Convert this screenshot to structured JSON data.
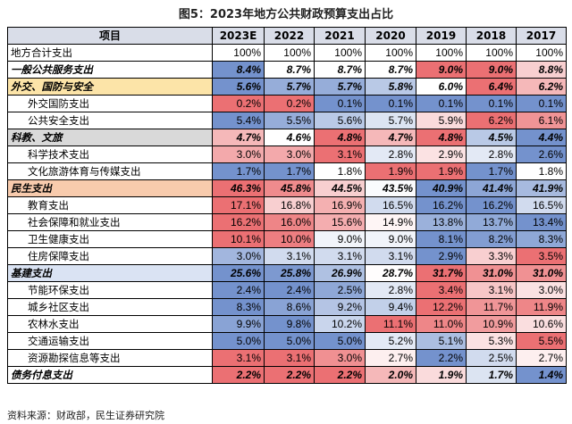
{
  "title": "图5：2023年地方公共财政预算支出占比",
  "source": "资料来源：财政部，民生证券研究院",
  "chart_data": {
    "type": "table",
    "title": "图5：2023年地方公共财政预算支出占比",
    "columns": [
      "项目",
      "2023E",
      "2022",
      "2021",
      "2020",
      "2019",
      "2018",
      "2017"
    ],
    "rows": [
      {
        "label": "地方合计支出",
        "level": 0,
        "bg": "#ffffff",
        "values": [
          "100%",
          "100%",
          "100%",
          "100%",
          "100%",
          "100%",
          "100%"
        ]
      },
      {
        "label": "一般公共服务支出",
        "level": 1,
        "bg": "#ffffff",
        "values": [
          "8.4%",
          "8.7%",
          "8.7%",
          "8.7%",
          "9.0%",
          "9.0%",
          "8.8%"
        ]
      },
      {
        "label": "外交、国防与安全",
        "level": 1,
        "bg": "#fce4a8",
        "values": [
          "5.6%",
          "5.7%",
          "5.7%",
          "5.8%",
          "6.0%",
          "6.4%",
          "6.2%"
        ]
      },
      {
        "label": "外交国防支出",
        "level": 2,
        "bg": "#ffffff",
        "values": [
          "0.2%",
          "0.2%",
          "0.1%",
          "0.1%",
          "0.1%",
          "0.1%",
          "0.1%"
        ]
      },
      {
        "label": "公共安全支出",
        "level": 2,
        "bg": "#ffffff",
        "values": [
          "5.4%",
          "5.5%",
          "5.6%",
          "5.7%",
          "5.9%",
          "6.2%",
          "6.1%"
        ]
      },
      {
        "label": "科教、文旅",
        "level": 1,
        "bg": "#d9d9d9",
        "values": [
          "4.7%",
          "4.6%",
          "4.8%",
          "4.7%",
          "4.8%",
          "4.5%",
          "4.4%"
        ]
      },
      {
        "label": "科学技术支出",
        "level": 2,
        "bg": "#ffffff",
        "values": [
          "3.0%",
          "3.0%",
          "3.1%",
          "2.8%",
          "2.9%",
          "2.8%",
          "2.6%"
        ]
      },
      {
        "label": "文化旅游体育与传媒支出",
        "level": 2,
        "bg": "#ffffff",
        "values": [
          "1.7%",
          "1.7%",
          "1.8%",
          "1.9%",
          "1.9%",
          "1.7%",
          "1.8%"
        ]
      },
      {
        "label": "民生支出",
        "level": 1,
        "bg": "#f8cbad",
        "values": [
          "46.3%",
          "45.8%",
          "44.5%",
          "43.5%",
          "40.9%",
          "41.4%",
          "41.9%"
        ]
      },
      {
        "label": "教育支出",
        "level": 2,
        "bg": "#ffffff",
        "values": [
          "17.1%",
          "16.8%",
          "16.9%",
          "16.5%",
          "16.2%",
          "16.2%",
          "16.5%"
        ]
      },
      {
        "label": "社会保障和就业支出",
        "level": 2,
        "bg": "#ffffff",
        "values": [
          "16.2%",
          "16.0%",
          "15.6%",
          "14.9%",
          "13.8%",
          "13.7%",
          "13.4%"
        ]
      },
      {
        "label": "卫生健康支出",
        "level": 2,
        "bg": "#ffffff",
        "values": [
          "10.1%",
          "10.0%",
          "9.0%",
          "9.0%",
          "8.1%",
          "8.2%",
          "8.3%"
        ]
      },
      {
        "label": "住房保障支出",
        "level": 2,
        "bg": "#ffffff",
        "values": [
          "3.0%",
          "3.1%",
          "3.1%",
          "3.1%",
          "2.9%",
          "3.3%",
          "3.5%"
        ]
      },
      {
        "label": "基建支出",
        "level": 1,
        "bg": "#dae3f3",
        "values": [
          "25.6%",
          "25.8%",
          "26.9%",
          "28.7%",
          "31.7%",
          "31.0%",
          "31.0%"
        ]
      },
      {
        "label": "节能环保支出",
        "level": 2,
        "bg": "#ffffff",
        "values": [
          "2.4%",
          "2.4%",
          "2.5%",
          "2.8%",
          "3.4%",
          "3.1%",
          "3.0%"
        ]
      },
      {
        "label": "城乡社区支出",
        "level": 2,
        "bg": "#ffffff",
        "values": [
          "8.3%",
          "8.6%",
          "9.2%",
          "9.4%",
          "12.2%",
          "11.7%",
          "11.9%"
        ]
      },
      {
        "label": "农林水支出",
        "level": 2,
        "bg": "#ffffff",
        "values": [
          "9.9%",
          "9.8%",
          "10.2%",
          "11.1%",
          "11.0%",
          "10.9%",
          "10.6%"
        ]
      },
      {
        "label": "交通运输支出",
        "level": 2,
        "bg": "#ffffff",
        "values": [
          "5.0%",
          "5.0%",
          "5.0%",
          "5.2%",
          "5.1%",
          "5.3%",
          "5.5%"
        ]
      },
      {
        "label": "资源勘探信息等支出",
        "level": 2,
        "bg": "#ffffff",
        "values": [
          "3.1%",
          "3.1%",
          "3.0%",
          "2.7%",
          "2.2%",
          "2.5%",
          "2.7%"
        ]
      },
      {
        "label": "债务付息支出",
        "level": 1,
        "bg": "#ffffff",
        "values": [
          "2.2%",
          "2.2%",
          "2.2%",
          "2.0%",
          "1.9%",
          "1.7%",
          "1.4%"
        ]
      }
    ],
    "heat_colors": {
      "low": "#5b7fc4",
      "mid": "#ffffff",
      "high": "#e8575a"
    }
  }
}
